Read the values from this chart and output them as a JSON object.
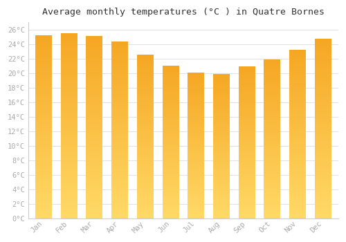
{
  "title": "Average monthly temperatures (°C ) in Quatre Bornes",
  "months": [
    "Jan",
    "Feb",
    "Mar",
    "Apr",
    "May",
    "Jun",
    "Jul",
    "Aug",
    "Sep",
    "Oct",
    "Nov",
    "Dec"
  ],
  "values": [
    25.2,
    25.5,
    25.1,
    24.4,
    22.5,
    21.0,
    20.1,
    19.9,
    20.9,
    21.9,
    23.2,
    24.7
  ],
  "bar_color_top": "#F5A623",
  "bar_color_bottom": "#FFD966",
  "background_color": "#FFFFFF",
  "grid_color": "#DDDDDD",
  "ylim": [
    0,
    27
  ],
  "ytick_step": 2,
  "title_fontsize": 9.5,
  "tick_fontsize": 7.5,
  "tick_color": "#AAAAAA",
  "title_color": "#333333",
  "bar_width": 0.65
}
